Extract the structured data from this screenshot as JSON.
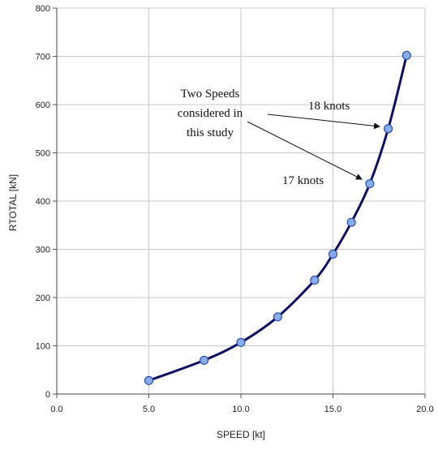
{
  "chart_data": {
    "type": "line",
    "xlabel": "SPEED [kt]",
    "ylabel": "RTOTAL [kN]",
    "xlim": [
      0.0,
      20.0
    ],
    "ylim": [
      0,
      800
    ],
    "x_ticks": [
      "0.0",
      "5.0",
      "10.0",
      "15.0",
      "20.0"
    ],
    "y_ticks": [
      "0",
      "100",
      "200",
      "300",
      "400",
      "500",
      "600",
      "700",
      "800"
    ],
    "grid": true,
    "series": [
      {
        "x": [
          5,
          8,
          10,
          12,
          14,
          15,
          16,
          17,
          18,
          19
        ],
        "values": [
          28,
          70,
          107,
          160,
          236,
          290,
          356,
          436,
          550,
          702
        ]
      }
    ],
    "annotations": {
      "note_lines": [
        "Two Speeds",
        "considered in",
        "this study"
      ],
      "label_18": "18 knots",
      "label_17": "17 knots",
      "arrow_targets": [
        {
          "x": 18,
          "y": 550
        },
        {
          "x": 17,
          "y": 436
        }
      ]
    },
    "colors": {
      "line": "#0d1060",
      "marker_fill": "#86acea",
      "marker_edge": "#2d4fa8",
      "grid": "#c8c8c8"
    }
  }
}
